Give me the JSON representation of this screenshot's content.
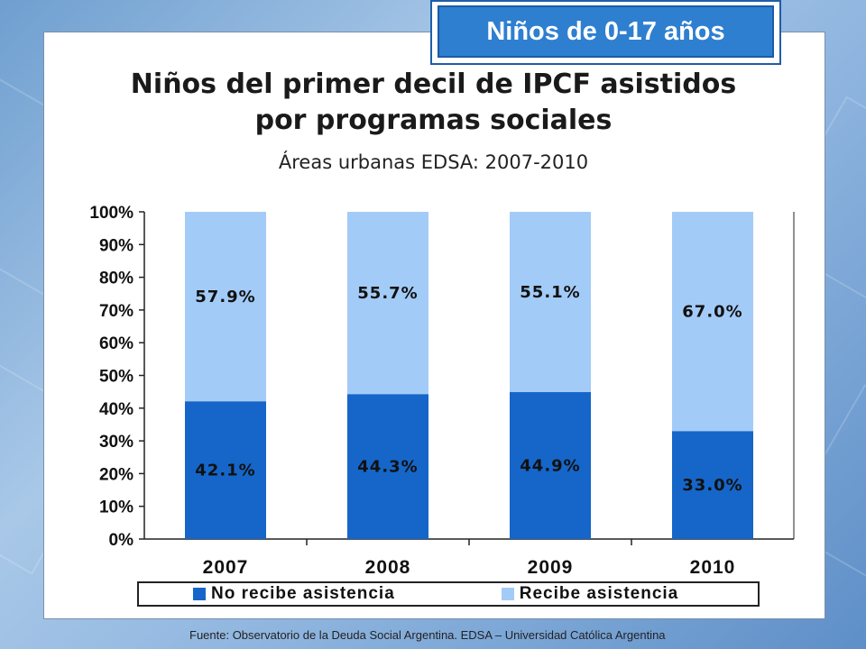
{
  "badge": {
    "text": "Niños de 0-17 años"
  },
  "source": "Fuente: Observatorio de la Deuda Social Argentina. EDSA – Universidad Católica Argentina",
  "colors": {
    "no_recibe": "#1566c8",
    "recibe": "#a3cbf7",
    "badge_bg": "#2f7fd0"
  },
  "chart_data": {
    "type": "bar",
    "stacked": true,
    "title": "Niños del primer decil de IPCF asistidos por programas sociales",
    "title_lines": [
      "Niños del primer decil de IPCF asistidos",
      "por programas sociales"
    ],
    "subtitle": "Áreas urbanas EDSA: 2007-2010",
    "categories": [
      "2007",
      "2008",
      "2009",
      "2010"
    ],
    "series": [
      {
        "name": "No recibe asistencia",
        "values": [
          42.1,
          44.3,
          44.9,
          33.0
        ],
        "labels": [
          "42.1%",
          "44.3%",
          "44.9%",
          "33.0%"
        ]
      },
      {
        "name": "Recibe asistencia",
        "values": [
          57.9,
          55.7,
          55.1,
          67.0
        ],
        "labels": [
          "57.9%",
          "55.7%",
          "55.1%",
          "67.0%"
        ]
      }
    ],
    "yticks": [
      "0%",
      "10%",
      "20%",
      "30%",
      "40%",
      "50%",
      "60%",
      "70%",
      "80%",
      "90%",
      "100%"
    ],
    "ylim": [
      0,
      100
    ],
    "grid": false,
    "legend_position": "bottom"
  }
}
